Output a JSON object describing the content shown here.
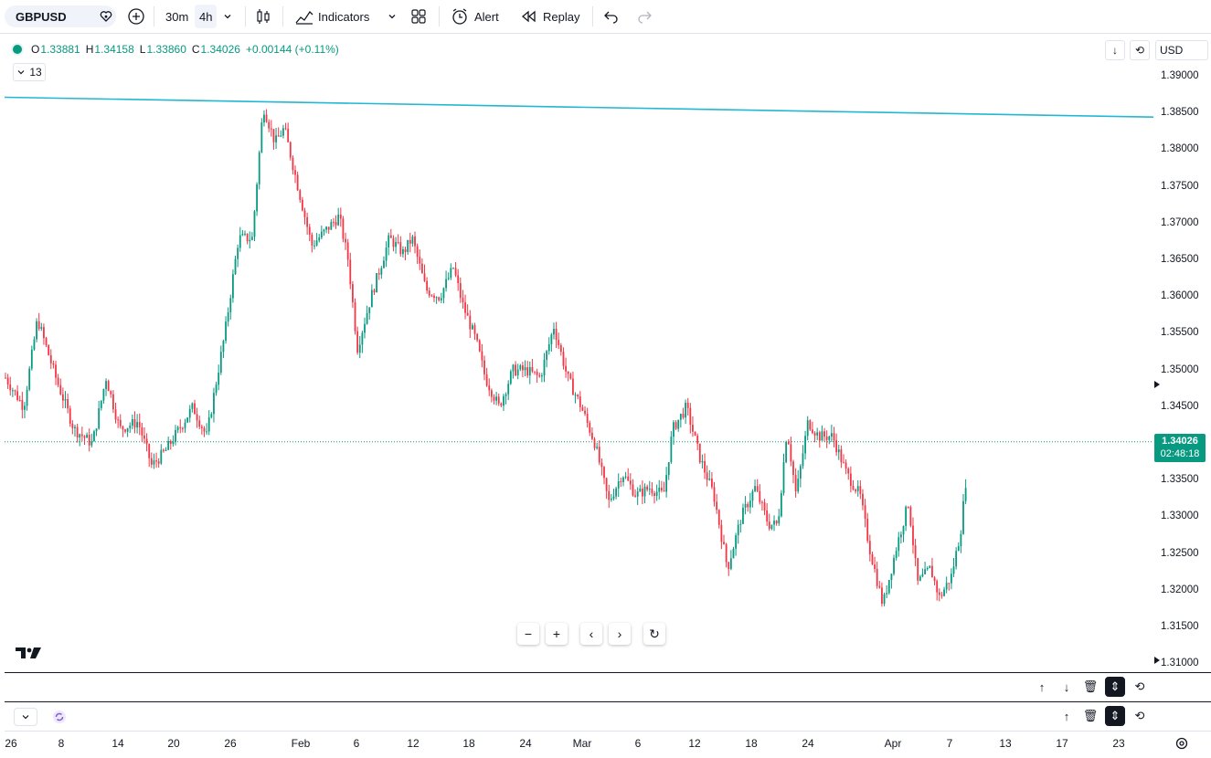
{
  "toolbar": {
    "symbol": "GBPUSD",
    "intervals": [
      "30m",
      "4h"
    ],
    "indicators_label": "Indicators",
    "alert_label": "Alert",
    "replay_label": "Replay"
  },
  "legend": {
    "o_key": "O",
    "o_val": "1.33881",
    "h_key": "H",
    "h_val": "1.34158",
    "l_key": "L",
    "l_val": "1.33860",
    "c_key": "C",
    "c_val": "1.34026",
    "change": "+0.00144 (+0.11%)",
    "indicator_count": "13"
  },
  "currency": "USD",
  "price_axis": [
    "1.39000",
    "1.38500",
    "1.38000",
    "1.37500",
    "1.37000",
    "1.36500",
    "1.36000",
    "1.35500",
    "1.35000",
    "1.34500",
    "1.34000",
    "1.33500",
    "1.33000",
    "1.32500",
    "1.32000",
    "1.31500",
    "1.31000"
  ],
  "current_price": {
    "price": "1.34026",
    "countdown": "02:48:18"
  },
  "time_axis": [
    "26",
    "8",
    "14",
    "20",
    "26",
    "Feb",
    "6",
    "12",
    "18",
    "24",
    "Mar",
    "6",
    "12",
    "18",
    "24",
    "Apr",
    "7",
    "13",
    "17",
    "23"
  ],
  "colors": {
    "up": "#089981",
    "down": "#f23645",
    "trendline": "#22b7d3"
  },
  "chart_data": {
    "type": "candlestick",
    "ylim": [
      1.31,
      1.39
    ],
    "trendline": {
      "from": 1.3872,
      "to": 1.3845
    },
    "path_points": [
      [
        0,
        1.349
      ],
      [
        20,
        1.345
      ],
      [
        35,
        1.357
      ],
      [
        55,
        1.349
      ],
      [
        75,
        1.342
      ],
      [
        95,
        1.34
      ],
      [
        110,
        1.349
      ],
      [
        125,
        1.342
      ],
      [
        145,
        1.343
      ],
      [
        160,
        1.337
      ],
      [
        175,
        1.339
      ],
      [
        190,
        1.342
      ],
      [
        205,
        1.345
      ],
      [
        220,
        1.341
      ],
      [
        240,
        1.355
      ],
      [
        255,
        1.368
      ],
      [
        270,
        1.368
      ],
      [
        282,
        1.386
      ],
      [
        295,
        1.381
      ],
      [
        305,
        1.383
      ],
      [
        320,
        1.375
      ],
      [
        335,
        1.367
      ],
      [
        350,
        1.369
      ],
      [
        365,
        1.371
      ],
      [
        375,
        1.365
      ],
      [
        385,
        1.353
      ],
      [
        400,
        1.36
      ],
      [
        420,
        1.368
      ],
      [
        435,
        1.366
      ],
      [
        445,
        1.368
      ],
      [
        460,
        1.361
      ],
      [
        475,
        1.36
      ],
      [
        490,
        1.364
      ],
      [
        500,
        1.359
      ],
      [
        515,
        1.354
      ],
      [
        525,
        1.349
      ],
      [
        540,
        1.345
      ],
      [
        555,
        1.35
      ],
      [
        570,
        1.35
      ],
      [
        585,
        1.349
      ],
      [
        600,
        1.356
      ],
      [
        615,
        1.349
      ],
      [
        630,
        1.345
      ],
      [
        645,
        1.34
      ],
      [
        660,
        1.332
      ],
      [
        675,
        1.336
      ],
      [
        690,
        1.333
      ],
      [
        705,
        1.334
      ],
      [
        720,
        1.333
      ],
      [
        730,
        1.342
      ],
      [
        745,
        1.345
      ],
      [
        760,
        1.338
      ],
      [
        775,
        1.333
      ],
      [
        790,
        1.323
      ],
      [
        805,
        1.33
      ],
      [
        820,
        1.334
      ],
      [
        835,
        1.329
      ],
      [
        845,
        1.329
      ],
      [
        855,
        1.342
      ],
      [
        865,
        1.333
      ],
      [
        878,
        1.343
      ],
      [
        890,
        1.341
      ],
      [
        905,
        1.341
      ],
      [
        920,
        1.336
      ],
      [
        935,
        1.333
      ],
      [
        945,
        1.326
      ],
      [
        960,
        1.318
      ],
      [
        975,
        1.326
      ],
      [
        988,
        1.332
      ],
      [
        998,
        1.321
      ],
      [
        1012,
        1.323
      ],
      [
        1022,
        1.319
      ],
      [
        1035,
        1.322
      ],
      [
        1045,
        1.328
      ],
      [
        1055,
        1.34
      ]
    ]
  }
}
